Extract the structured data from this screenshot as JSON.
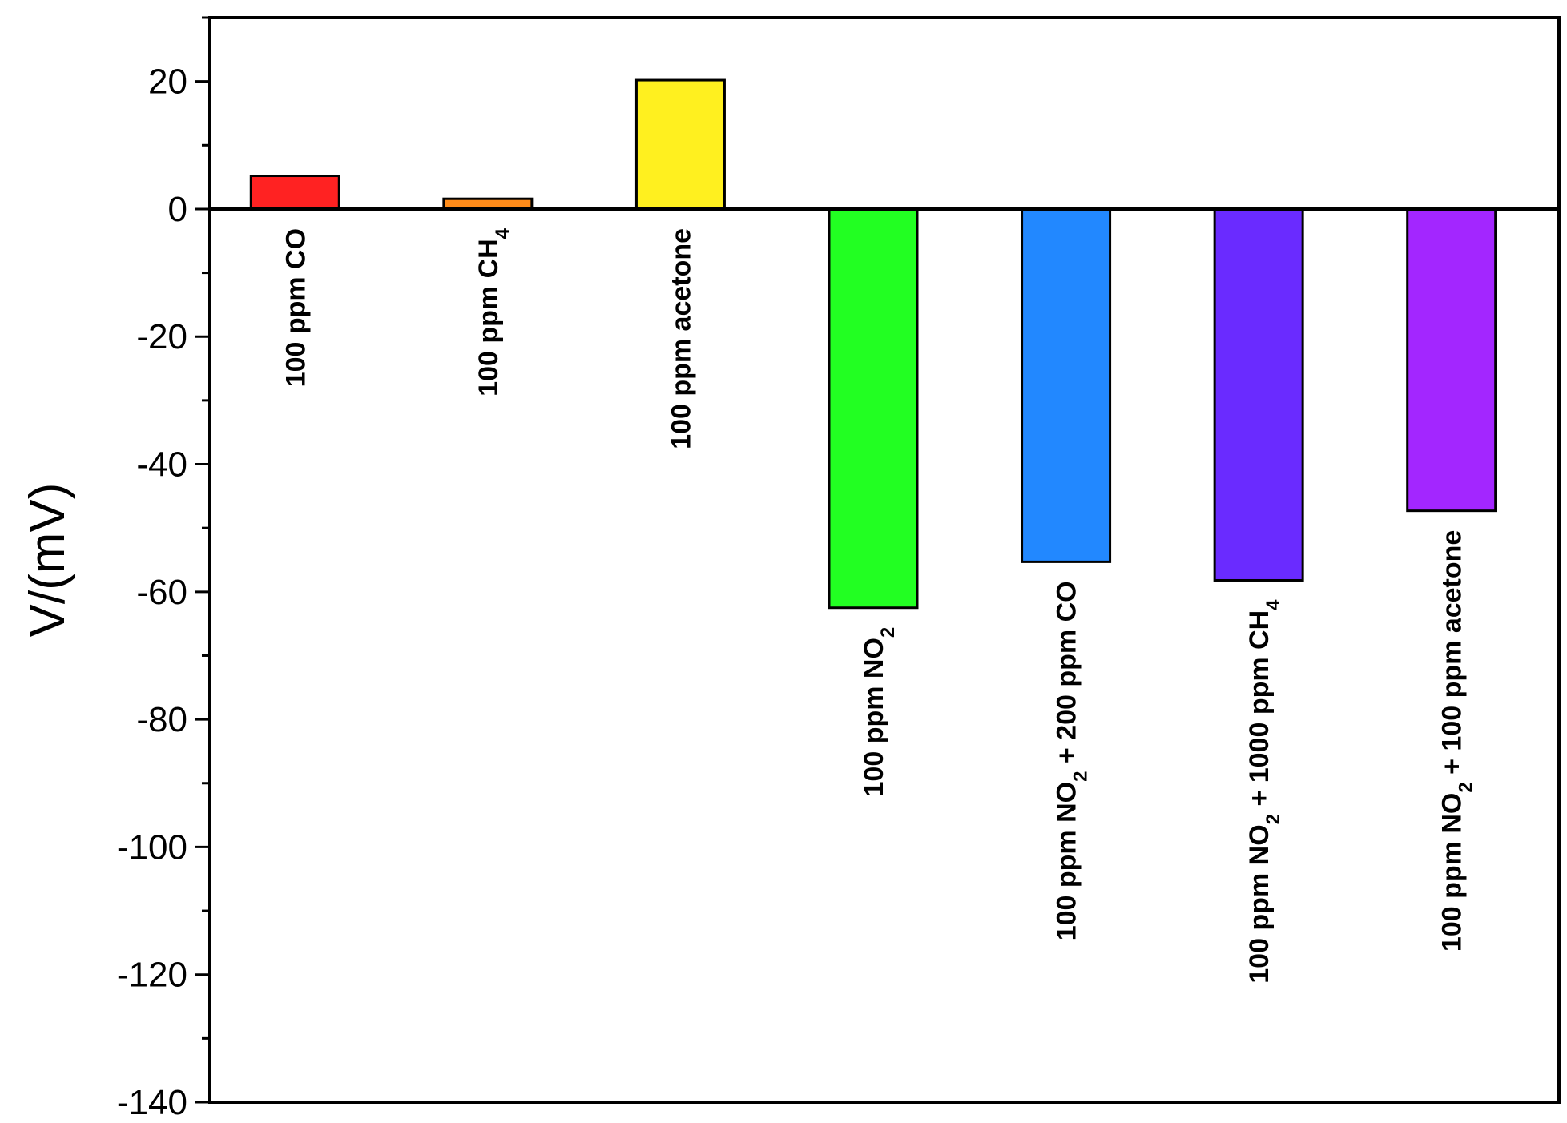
{
  "chart_data": {
    "type": "bar",
    "ylabel": "V/(mV)",
    "ylim": [
      -140,
      30
    ],
    "yticks": [
      20,
      0,
      -20,
      -40,
      -60,
      -80,
      -100,
      -120,
      -140
    ],
    "ytick_labels": [
      "20",
      "0",
      "-20",
      "-40",
      "-60",
      "-80",
      "-100",
      "-120",
      "-140"
    ],
    "categories": [
      "100 ppm CO",
      "100 ppm CH4",
      "100 ppm acetone",
      "100 ppm NO2",
      "100 ppm NO2 + 200 ppm CO",
      "100 ppm NO2 + 1000 ppm CH4",
      "100 ppm NO2 + 100 ppm acetone"
    ],
    "values": [
      5.2,
      1.6,
      20.2,
      -62.5,
      -55.3,
      -58.2,
      -47.3
    ],
    "colors": [
      "#ff2222",
      "#ff8c1a",
      "#fff01f",
      "#22ff22",
      "#2288ff",
      "#6a2bff",
      "#a326ff"
    ],
    "grid": false,
    "legend": "none"
  }
}
